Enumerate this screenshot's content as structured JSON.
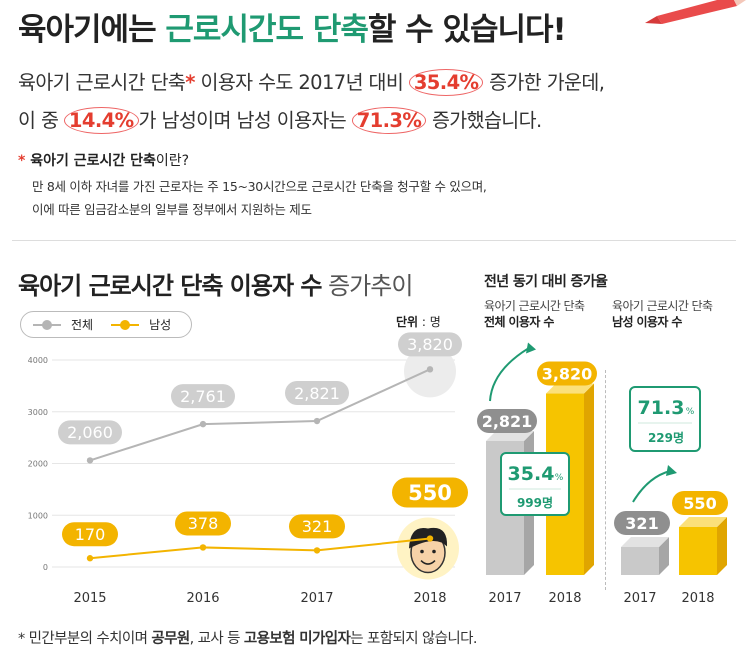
{
  "headline": {
    "part1": "육아기에는 ",
    "highlight": "근로시간도 단축",
    "part2": "할 수 있습니다!"
  },
  "intro": {
    "l1_a": "육아기 근로시간 단축",
    "l1_star": "*",
    "l1_b": " 이용자 수도 2017년 대비 ",
    "l1_pct": "35.4%",
    "l1_c": " 증가한 가운데,",
    "l2_a": "이 중 ",
    "l2_pct1": "14.4%",
    "l2_b": "가 남성이며 남성 이용자는 ",
    "l2_pct2": "71.3%",
    "l2_c": " 증가했습니다."
  },
  "note": {
    "star": "* ",
    "bold": "육아기 근로시간 단축",
    "tail": "이란?",
    "line1": "만 8세 이하 자녀를 가진 근로자는 주 15~30시간으로 근로시간 단축을 청구할 수 있으며,",
    "line2": "이에 따른 임금감소분의 일부를 정부에서 지원하는 제도"
  },
  "chart_title": {
    "bold": "육아기 근로시간 단축 이용자 수",
    "light": " 증가추이"
  },
  "legend": {
    "total": "전체",
    "male": "남성"
  },
  "unit": {
    "label": "단위",
    "value": " : 명"
  },
  "right_panel": {
    "title": "전년 동기 대비 증가율",
    "total_sub1": "육아기 근로시간 단축",
    "total_sub2": "전체 이용자 수",
    "male_sub1": "육아기 근로시간 단축",
    "male_sub2": "남성 이용자 수"
  },
  "footnote": {
    "a": "* 민간부분의 수치이며 ",
    "b": "공무원",
    "c": ", 교사 등 ",
    "d": "고용보험 미가입자",
    "e": "는 포함되지 않습니다."
  },
  "colors": {
    "gray_line": "#b5b5b5",
    "yellow_line": "#f3b400",
    "green_accent": "#1f9a72",
    "red_accent": "#e43d2f"
  },
  "chart_data": [
    {
      "type": "line",
      "title": "육아기 근로시간 단축 이용자 수 증가추이",
      "categories": [
        "2015",
        "2016",
        "2017",
        "2018"
      ],
      "series": [
        {
          "name": "전체",
          "values": [
            2060,
            2761,
            2821,
            3820
          ],
          "labels": [
            "2,060",
            "2,761",
            "2,821",
            "3,820"
          ]
        },
        {
          "name": "남성",
          "values": [
            170,
            378,
            321,
            550
          ],
          "labels": [
            "170",
            "378",
            "321",
            "550"
          ]
        }
      ],
      "yticks": [
        0,
        1000,
        2000,
        3000,
        4000
      ],
      "ylim": [
        0,
        4000
      ],
      "unit": "명",
      "legend": "top-left"
    },
    {
      "type": "bar",
      "title": "육아기 근로시간 단축 전체 이용자 수",
      "categories": [
        "2017",
        "2018"
      ],
      "values": [
        2821,
        3820
      ],
      "labels": [
        "2,821",
        "3,820"
      ],
      "change_pct": "35.4",
      "change_pct_unit": "%",
      "change_abs": "999명"
    },
    {
      "type": "bar",
      "title": "육아기 근로시간 단축 남성 이용자 수",
      "categories": [
        "2017",
        "2018"
      ],
      "values": [
        321,
        550
      ],
      "labels": [
        "321",
        "550"
      ],
      "change_pct": "71.3",
      "change_pct_unit": "%",
      "change_abs": "229명"
    }
  ]
}
